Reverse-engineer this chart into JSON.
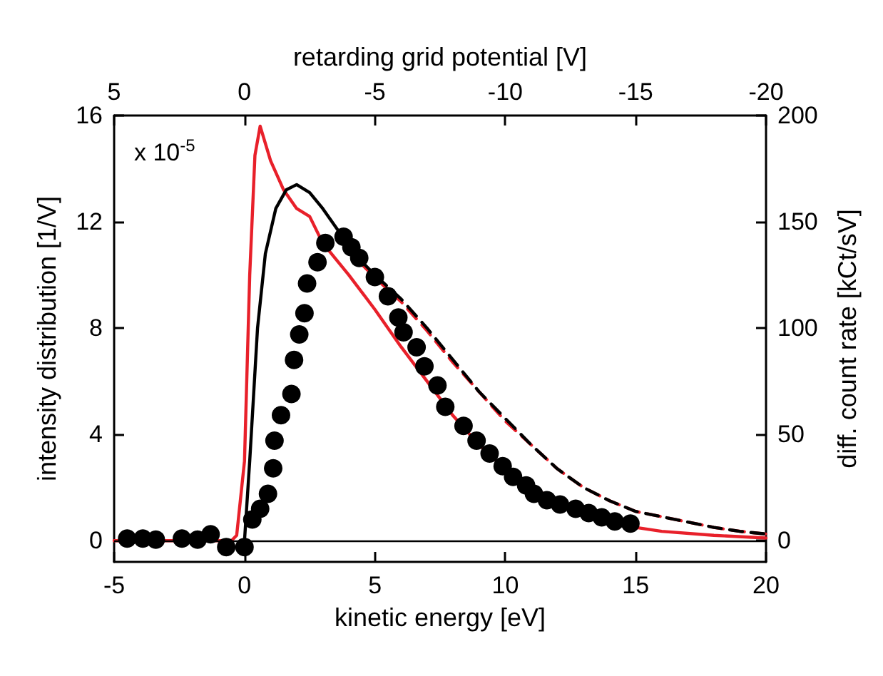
{
  "chart_data": {
    "type": "line",
    "xlabel": "kinetic energy [eV]",
    "ylabel": "intensity distribution [1/V]",
    "y2label": "diff. count rate [kCt/sV]",
    "x2label": "retarding grid potential [V]",
    "annotations": [
      "x 10$^{-5}$"
    ],
    "xlim": [
      -5,
      20
    ],
    "xticks": [
      -5,
      0,
      5,
      10,
      15,
      20
    ],
    "x2lim": [
      5,
      -20
    ],
    "x2ticks": [
      5,
      0,
      -5,
      -10,
      -15,
      -20
    ],
    "ylim": [
      -0.8,
      16
    ],
    "yticks": [
      0,
      4,
      8,
      12,
      16
    ],
    "y2lim": [
      -10,
      200
    ],
    "y2ticks": [
      0,
      50,
      100,
      150,
      200
    ],
    "grid": false,
    "ref_lines": [
      {
        "axis": "y",
        "value": 0,
        "color": "#000000"
      }
    ],
    "series": [
      {
        "color": "#e8202a",
        "line_style": "solid",
        "marker": "none",
        "x": [
          -5,
          -0.5,
          -0.3,
          0,
          0.2,
          0.4,
          0.6,
          1.0,
          1.5,
          2,
          2.5,
          3,
          4,
          5,
          6,
          7,
          8,
          9,
          10,
          11,
          12,
          13,
          14,
          15,
          16,
          18,
          20
        ],
        "values": [
          0,
          0,
          0.2,
          3,
          10,
          14.5,
          15.6,
          14.3,
          13.2,
          12.5,
          12.2,
          11.2,
          10,
          8.7,
          7.3,
          6.0,
          4.7,
          3.6,
          2.7,
          2.0,
          1.5,
          1.0,
          0.7,
          0.5,
          0.35,
          0.2,
          0.1
        ]
      },
      {
        "color": "#e8202a",
        "line_style": "dashed",
        "marker": "none",
        "x": [
          4.5,
          5,
          6,
          7,
          8,
          9,
          10,
          11,
          12,
          13,
          14,
          15,
          16,
          17,
          18,
          19,
          20
        ],
        "values": [
          10.4,
          9.9,
          9.0,
          7.9,
          6.7,
          5.6,
          4.5,
          3.6,
          2.7,
          2.0,
          1.5,
          1.1,
          0.9,
          0.7,
          0.5,
          0.35,
          0.25
        ]
      },
      {
        "color": "#000000",
        "line_style": "solid",
        "marker": "none",
        "x": [
          0,
          0.2,
          0.5,
          0.8,
          1.2,
          1.6,
          2,
          2.5,
          3,
          3.5,
          4,
          4.5
        ],
        "values": [
          0,
          3,
          8,
          10.8,
          12.5,
          13.2,
          13.4,
          13.1,
          12.5,
          11.8,
          11.1,
          10.5
        ]
      },
      {
        "color": "#000000",
        "line_style": "dashed",
        "marker": "none",
        "x": [
          4.5,
          5,
          6,
          7,
          8,
          9,
          10,
          11,
          12,
          13,
          14,
          15,
          16,
          17,
          18,
          19,
          20
        ],
        "values": [
          10.5,
          10,
          9.1,
          8.0,
          6.8,
          5.6,
          4.6,
          3.6,
          2.7,
          2.0,
          1.5,
          1.1,
          0.9,
          0.7,
          0.5,
          0.35,
          0.25
        ]
      },
      {
        "type": "scatter",
        "color": "#000000",
        "marker": "circle",
        "axis": "y2",
        "x": [
          -4.5,
          -3.9,
          -3.4,
          -2.4,
          -1.8,
          -1.3,
          -0.7,
          0.0,
          0.3,
          0.6,
          0.9,
          1.1,
          1.15,
          1.4,
          1.8,
          1.9,
          2.1,
          2.3,
          2.4,
          2.8,
          3.1,
          3.8,
          4.1,
          4.4,
          5.0,
          5.5,
          5.9,
          6.1,
          6.6,
          6.9,
          7.4,
          7.7,
          8.4,
          8.9,
          9.4,
          9.9,
          10.3,
          10.8,
          11.1,
          11.6,
          12.1,
          12.7,
          13.2,
          13.7,
          14.2,
          14.8
        ],
        "values": [
          1,
          1,
          0.5,
          1,
          0.5,
          3,
          -3,
          -3,
          10,
          15,
          22,
          34,
          47,
          59,
          69,
          85,
          97,
          107,
          121,
          131,
          140,
          143,
          138,
          133,
          124,
          115,
          105,
          98,
          91,
          82,
          73,
          63,
          54,
          47,
          41,
          35,
          30,
          26,
          22,
          19,
          17,
          15,
          13,
          11,
          9,
          8
        ]
      }
    ]
  }
}
